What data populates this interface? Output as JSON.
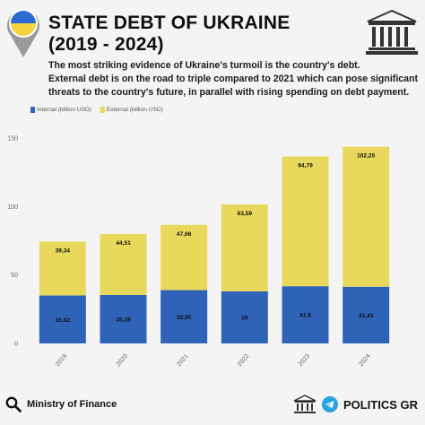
{
  "header": {
    "title_line1": "STATE DEBT OF UKRAINE",
    "title_line2": "(2019 - 2024)",
    "description_lines": [
      "The most striking evidence of Ukraine's turmoil is the country's debt.",
      "External debt is on the road to triple compared to 2021 which can pose significant",
      "threats to the country's future, in parallel with rising spending on debt payment."
    ]
  },
  "icons": {
    "flag_pin": "ukraine-flag-pin-icon",
    "building": "classical-building-icon",
    "search": "search-icon",
    "telegram": "telegram-icon"
  },
  "colors": {
    "internal": "#2e63b8",
    "external": "#e8d95c",
    "flag_blue": "#2a6bd1",
    "flag_yellow": "#f5d33a",
    "telegram": "#2aa3df"
  },
  "chart_data": {
    "type": "bar",
    "stacked": true,
    "categories": [
      "2019",
      "2020",
      "2021",
      "2022",
      "2023",
      "2024"
    ],
    "series": [
      {
        "name": "Internal (billion USD)",
        "values": [
          35.02,
          35.39,
          38.95,
          38,
          41.8,
          41.43
        ],
        "labels": [
          "35,02",
          "35,39",
          "38,95",
          "38",
          "41,8",
          "41,43"
        ]
      },
      {
        "name": "External (billion USD)",
        "values": [
          39.34,
          44.51,
          47.66,
          63.59,
          94.79,
          102.25
        ],
        "labels": [
          "39,34",
          "44,51",
          "47,66",
          "63,59",
          "94,79",
          "102,25"
        ]
      }
    ],
    "yticks": [
      0,
      50,
      100,
      150
    ],
    "ylim": [
      0,
      150
    ],
    "legend": "top-left",
    "grid": false
  },
  "footer": {
    "source": "Ministry of Finance",
    "brand": "POLITICS GR"
  }
}
